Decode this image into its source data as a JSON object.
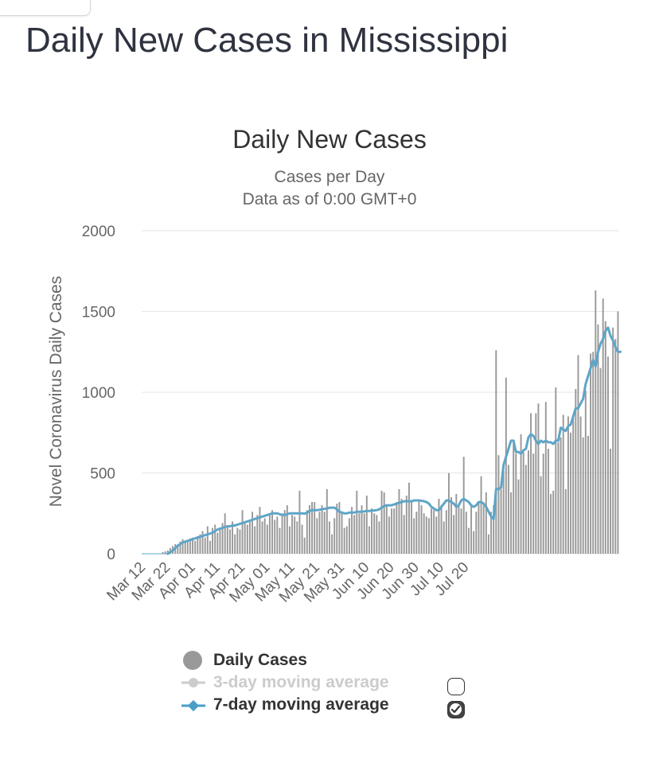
{
  "page": {
    "title": "Daily New Cases in Mississippi"
  },
  "chart_data": {
    "type": "bar",
    "title": "Daily New Cases",
    "subtitle": [
      "Cases per Day",
      "Data as of 0:00 GMT+0"
    ],
    "ylabel": "Novel Coronavirus Daily Cases",
    "xlabel": "",
    "ylim": [
      0,
      2000
    ],
    "yticks": [
      0,
      500,
      1000,
      1500,
      2000
    ],
    "grid": true,
    "x_start": "2020-03-12",
    "x_tick_labels": [
      "Mar 12",
      "Mar 22",
      "Apr 01",
      "Apr 11",
      "Apr 21",
      "May 01",
      "May 11",
      "May 21",
      "May 31",
      "Jun 10",
      "Jun 20",
      "Jun 30",
      "Jul 10",
      "Jul 20"
    ],
    "colors": {
      "bars": "#999999",
      "avg7": "#5ea5c8",
      "avg3_disabled": "#cccccc",
      "grid": "#e6e6e6"
    },
    "series": [
      {
        "name": "Daily Cases",
        "type": "bar",
        "visible": true,
        "values": [
          0,
          0,
          0,
          0,
          0,
          0,
          0,
          0,
          10,
          15,
          20,
          35,
          48,
          60,
          55,
          75,
          90,
          70,
          85,
          95,
          100,
          80,
          110,
          120,
          140,
          100,
          170,
          80,
          160,
          180,
          130,
          160,
          190,
          250,
          170,
          150,
          200,
          120,
          160,
          150,
          270,
          190,
          180,
          210,
          260,
          170,
          240,
          290,
          200,
          220,
          180,
          250,
          270,
          210,
          230,
          160,
          250,
          270,
          300,
          170,
          240,
          230,
          200,
          390,
          180,
          100,
          270,
          300,
          320,
          320,
          220,
          260,
          300,
          260,
          400,
          200,
          120,
          220,
          310,
          320,
          250,
          160,
          170,
          220,
          290,
          240,
          390,
          250,
          300,
          250,
          360,
          170,
          280,
          250,
          240,
          200,
          390,
          380,
          300,
          230,
          280,
          280,
          320,
          400,
          340,
          240,
          360,
          440,
          320,
          220,
          260,
          330,
          300,
          250,
          230,
          220,
          280,
          270,
          230,
          340,
          300,
          200,
          270,
          500,
          350,
          240,
          370,
          300,
          280,
          600,
          260,
          160,
          300,
          140,
          260,
          320,
          480,
          300,
          380,
          120,
          260,
          300,
          1260,
          610,
          400,
          520,
          1090,
          550,
          380,
          690,
          620,
          460,
          740,
          630,
          550,
          640,
          870,
          620,
          870,
          930,
          480,
          620,
          940,
          650,
          370,
          390,
          1030,
          690,
          720,
          860,
          400,
          850,
          750,
          860,
          1020,
          1230,
          850,
          720,
          1010,
          730,
          1240,
          1250,
          1630,
          1420,
          1150,
          1580,
          1440,
          1220,
          650,
          1400,
          1330,
          1500
        ]
      },
      {
        "name": "3-day moving average",
        "type": "line",
        "visible": false
      },
      {
        "name": "7-day moving average",
        "type": "line",
        "visible": true,
        "values": [
          0,
          0,
          0,
          0,
          0,
          0,
          0,
          0,
          0,
          0,
          0,
          10,
          20,
          35,
          50,
          60,
          70,
          75,
          80,
          85,
          90,
          95,
          100,
          105,
          110,
          115,
          120,
          125,
          130,
          140,
          150,
          155,
          160,
          165,
          170,
          170,
          175,
          175,
          180,
          185,
          190,
          195,
          200,
          205,
          210,
          215,
          220,
          225,
          230,
          235,
          240,
          245,
          250,
          250,
          250,
          245,
          240,
          240,
          245,
          250,
          250,
          250,
          250,
          250,
          250,
          248,
          255,
          265,
          270,
          270,
          270,
          272,
          275,
          278,
          280,
          285,
          285,
          285,
          275,
          260,
          255,
          250,
          250,
          255,
          255,
          255,
          260,
          260,
          260,
          262,
          265,
          265,
          267,
          268,
          270,
          275,
          285,
          295,
          300,
          300,
          300,
          305,
          310,
          315,
          320,
          325,
          325,
          325,
          325,
          330,
          330,
          330,
          328,
          325,
          320,
          310,
          290,
          280,
          270,
          270,
          290,
          310,
          330,
          330,
          320,
          310,
          290,
          300,
          330,
          340,
          330,
          320,
          300,
          290,
          300,
          320,
          320,
          310,
          290,
          260,
          230,
          215,
          400,
          400,
          410,
          550,
          600,
          650,
          700,
          700,
          630,
          630,
          620,
          640,
          650,
          720,
          740,
          730,
          700,
          680,
          700,
          690,
          700,
          690,
          690,
          680,
          700,
          700,
          780,
          770,
          760,
          790,
          800,
          850,
          900,
          900,
          930,
          960,
          1050,
          1100,
          1150,
          1200,
          1160,
          1250,
          1300,
          1330,
          1380,
          1400,
          1350,
          1320,
          1280,
          1250,
          1250
        ]
      }
    ]
  },
  "legend": {
    "items": [
      {
        "label": "Daily Cases",
        "color": "#999999"
      },
      {
        "label": "3-day moving average",
        "color": "#cccccc"
      },
      {
        "label": "7-day moving average",
        "color": "#4a9ec5"
      }
    ]
  }
}
